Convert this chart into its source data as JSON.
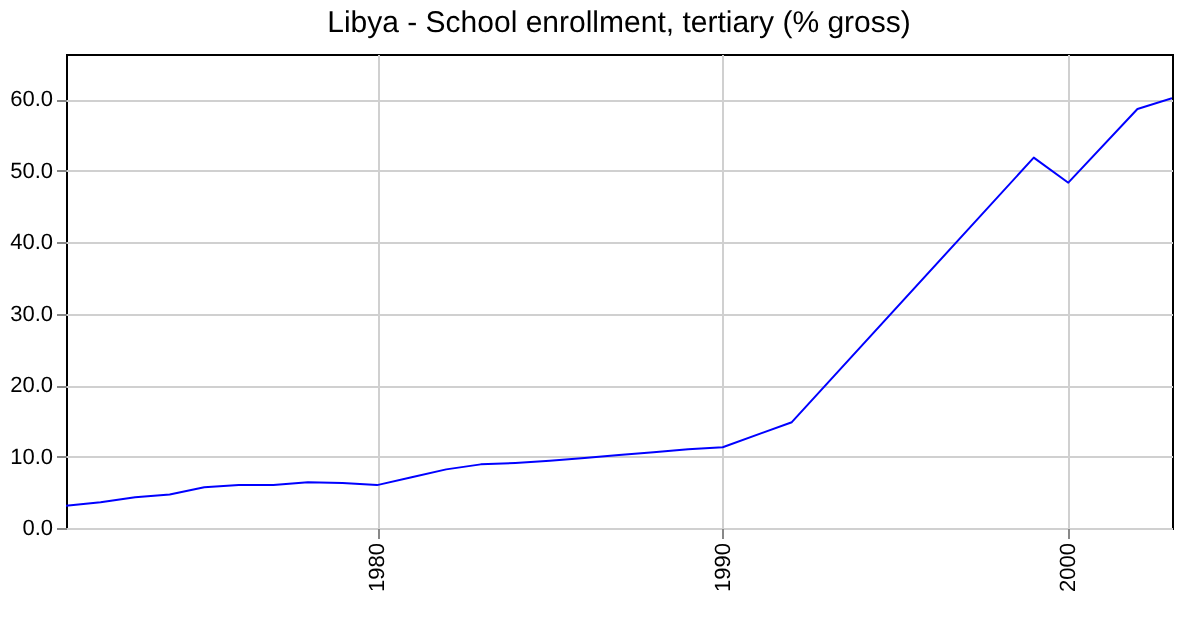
{
  "chart_data": {
    "type": "line",
    "title": "Libya - School enrollment, tertiary (% gross)",
    "x": [
      1971,
      1972,
      1973,
      1974,
      1975,
      1976,
      1977,
      1978,
      1979,
      1980,
      1981,
      1982,
      1983,
      1984,
      1985,
      1986,
      1987,
      1988,
      1989,
      1990,
      1992,
      1999,
      2000,
      2002,
      2003
    ],
    "series": [
      {
        "color": "#0000ff",
        "values": [
          3.1,
          3.6,
          4.3,
          4.7,
          5.7,
          6.0,
          6.0,
          6.4,
          6.3,
          6.0,
          7.1,
          8.2,
          8.9,
          9.1,
          9.4,
          9.8,
          10.2,
          10.6,
          11.0,
          11.3,
          14.8,
          51.8,
          48.3,
          58.6,
          60.1
        ]
      }
    ],
    "xlim": [
      1971,
      2003
    ],
    "xticks": [
      1980,
      1990,
      2000
    ],
    "ylim": [
      0,
      66.3
    ],
    "yticks": [
      {
        "value": 0,
        "label": "0.0"
      },
      {
        "value": 10,
        "label": "10.0"
      },
      {
        "value": 20,
        "label": "20.0"
      },
      {
        "value": 30,
        "label": "30.0"
      },
      {
        "value": 40,
        "label": "40.0"
      },
      {
        "value": 50,
        "label": "50.0"
      },
      {
        "value": 60,
        "label": "60.0"
      }
    ],
    "grid": true,
    "marker": "none",
    "line_style": "solid"
  }
}
